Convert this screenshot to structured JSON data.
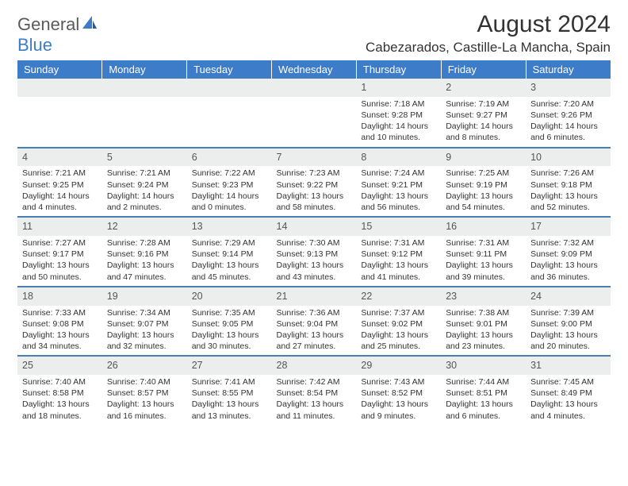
{
  "brand": {
    "part1": "General",
    "part2": "Blue"
  },
  "title": "August 2024",
  "location": "Cabezarados, Castille-La Mancha, Spain",
  "colors": {
    "header_bg": "#3d7cc9",
    "row_sep": "#4a7fb5",
    "daynum_bg": "#eceded",
    "text": "#333333",
    "logo_gray": "#5a5a5a",
    "logo_blue": "#3d7cc9"
  },
  "weekdays": [
    "Sunday",
    "Monday",
    "Tuesday",
    "Wednesday",
    "Thursday",
    "Friday",
    "Saturday"
  ],
  "weeks": [
    [
      null,
      null,
      null,
      null,
      {
        "d": "1",
        "sr": "7:18 AM",
        "ss": "9:28 PM",
        "dl1": "Daylight: 14 hours",
        "dl2": "and 10 minutes."
      },
      {
        "d": "2",
        "sr": "7:19 AM",
        "ss": "9:27 PM",
        "dl1": "Daylight: 14 hours",
        "dl2": "and 8 minutes."
      },
      {
        "d": "3",
        "sr": "7:20 AM",
        "ss": "9:26 PM",
        "dl1": "Daylight: 14 hours",
        "dl2": "and 6 minutes."
      }
    ],
    [
      {
        "d": "4",
        "sr": "7:21 AM",
        "ss": "9:25 PM",
        "dl1": "Daylight: 14 hours",
        "dl2": "and 4 minutes."
      },
      {
        "d": "5",
        "sr": "7:21 AM",
        "ss": "9:24 PM",
        "dl1": "Daylight: 14 hours",
        "dl2": "and 2 minutes."
      },
      {
        "d": "6",
        "sr": "7:22 AM",
        "ss": "9:23 PM",
        "dl1": "Daylight: 14 hours",
        "dl2": "and 0 minutes."
      },
      {
        "d": "7",
        "sr": "7:23 AM",
        "ss": "9:22 PM",
        "dl1": "Daylight: 13 hours",
        "dl2": "and 58 minutes."
      },
      {
        "d": "8",
        "sr": "7:24 AM",
        "ss": "9:21 PM",
        "dl1": "Daylight: 13 hours",
        "dl2": "and 56 minutes."
      },
      {
        "d": "9",
        "sr": "7:25 AM",
        "ss": "9:19 PM",
        "dl1": "Daylight: 13 hours",
        "dl2": "and 54 minutes."
      },
      {
        "d": "10",
        "sr": "7:26 AM",
        "ss": "9:18 PM",
        "dl1": "Daylight: 13 hours",
        "dl2": "and 52 minutes."
      }
    ],
    [
      {
        "d": "11",
        "sr": "7:27 AM",
        "ss": "9:17 PM",
        "dl1": "Daylight: 13 hours",
        "dl2": "and 50 minutes."
      },
      {
        "d": "12",
        "sr": "7:28 AM",
        "ss": "9:16 PM",
        "dl1": "Daylight: 13 hours",
        "dl2": "and 47 minutes."
      },
      {
        "d": "13",
        "sr": "7:29 AM",
        "ss": "9:14 PM",
        "dl1": "Daylight: 13 hours",
        "dl2": "and 45 minutes."
      },
      {
        "d": "14",
        "sr": "7:30 AM",
        "ss": "9:13 PM",
        "dl1": "Daylight: 13 hours",
        "dl2": "and 43 minutes."
      },
      {
        "d": "15",
        "sr": "7:31 AM",
        "ss": "9:12 PM",
        "dl1": "Daylight: 13 hours",
        "dl2": "and 41 minutes."
      },
      {
        "d": "16",
        "sr": "7:31 AM",
        "ss": "9:11 PM",
        "dl1": "Daylight: 13 hours",
        "dl2": "and 39 minutes."
      },
      {
        "d": "17",
        "sr": "7:32 AM",
        "ss": "9:09 PM",
        "dl1": "Daylight: 13 hours",
        "dl2": "and 36 minutes."
      }
    ],
    [
      {
        "d": "18",
        "sr": "7:33 AM",
        "ss": "9:08 PM",
        "dl1": "Daylight: 13 hours",
        "dl2": "and 34 minutes."
      },
      {
        "d": "19",
        "sr": "7:34 AM",
        "ss": "9:07 PM",
        "dl1": "Daylight: 13 hours",
        "dl2": "and 32 minutes."
      },
      {
        "d": "20",
        "sr": "7:35 AM",
        "ss": "9:05 PM",
        "dl1": "Daylight: 13 hours",
        "dl2": "and 30 minutes."
      },
      {
        "d": "21",
        "sr": "7:36 AM",
        "ss": "9:04 PM",
        "dl1": "Daylight: 13 hours",
        "dl2": "and 27 minutes."
      },
      {
        "d": "22",
        "sr": "7:37 AM",
        "ss": "9:02 PM",
        "dl1": "Daylight: 13 hours",
        "dl2": "and 25 minutes."
      },
      {
        "d": "23",
        "sr": "7:38 AM",
        "ss": "9:01 PM",
        "dl1": "Daylight: 13 hours",
        "dl2": "and 23 minutes."
      },
      {
        "d": "24",
        "sr": "7:39 AM",
        "ss": "9:00 PM",
        "dl1": "Daylight: 13 hours",
        "dl2": "and 20 minutes."
      }
    ],
    [
      {
        "d": "25",
        "sr": "7:40 AM",
        "ss": "8:58 PM",
        "dl1": "Daylight: 13 hours",
        "dl2": "and 18 minutes."
      },
      {
        "d": "26",
        "sr": "7:40 AM",
        "ss": "8:57 PM",
        "dl1": "Daylight: 13 hours",
        "dl2": "and 16 minutes."
      },
      {
        "d": "27",
        "sr": "7:41 AM",
        "ss": "8:55 PM",
        "dl1": "Daylight: 13 hours",
        "dl2": "and 13 minutes."
      },
      {
        "d": "28",
        "sr": "7:42 AM",
        "ss": "8:54 PM",
        "dl1": "Daylight: 13 hours",
        "dl2": "and 11 minutes."
      },
      {
        "d": "29",
        "sr": "7:43 AM",
        "ss": "8:52 PM",
        "dl1": "Daylight: 13 hours",
        "dl2": "and 9 minutes."
      },
      {
        "d": "30",
        "sr": "7:44 AM",
        "ss": "8:51 PM",
        "dl1": "Daylight: 13 hours",
        "dl2": "and 6 minutes."
      },
      {
        "d": "31",
        "sr": "7:45 AM",
        "ss": "8:49 PM",
        "dl1": "Daylight: 13 hours",
        "dl2": "and 4 minutes."
      }
    ]
  ],
  "labels": {
    "sunrise": "Sunrise:",
    "sunset": "Sunset:"
  }
}
